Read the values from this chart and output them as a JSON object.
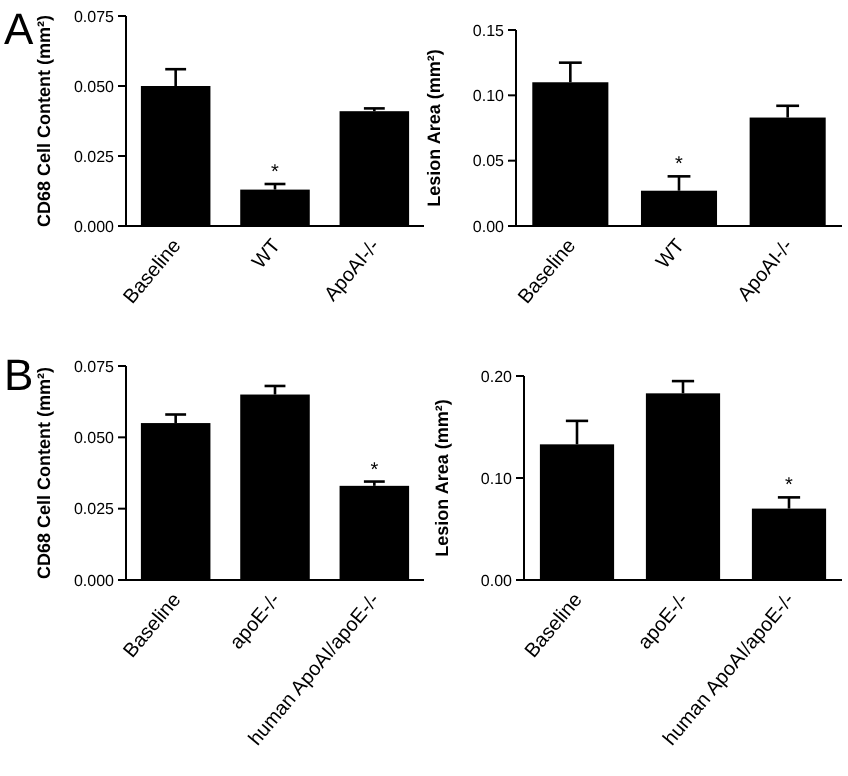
{
  "chart_data": [
    {
      "type": "bar",
      "ylabel": "CD68 Cell Content (mm²)",
      "categories": [
        "Baseline",
        "WT",
        "ApoAI-/-"
      ],
      "values": [
        0.05,
        0.013,
        0.041
      ],
      "color": "#000000",
      "errors": [
        [
          0.05,
          0.056
        ],
        [
          0.013,
          0.015
        ],
        [
          0.041,
          0.042
        ]
      ],
      "ylim": [
        0,
        0.075
      ],
      "yticks": [
        {
          "value": 0,
          "label": "0.000"
        },
        {
          "value": 0.025,
          "label": "0.025"
        },
        {
          "value": 0.05,
          "label": "0.050"
        },
        {
          "value": 0.075,
          "label": "0.075"
        }
      ],
      "grid": false,
      "annotations": [
        "A",
        {
          "text": "*",
          "x": "WT",
          "y": 0.015
        }
      ]
    },
    {
      "type": "bar",
      "ylabel": "Lesion Area (mm²)",
      "categories": [
        "Baseline",
        "WT",
        "ApoAI-/-"
      ],
      "values": [
        0.11,
        0.027,
        0.083
      ],
      "color": "#000000",
      "errors": [
        [
          0.11,
          0.125
        ],
        [
          0.027,
          0.038
        ],
        [
          0.083,
          0.092
        ]
      ],
      "ylim": [
        0,
        0.15
      ],
      "yticks": [
        {
          "value": 0,
          "label": "0.00"
        },
        {
          "value": 0.05,
          "label": "0.05"
        },
        {
          "value": 0.1,
          "label": "0.10"
        },
        {
          "value": 0.15,
          "label": "0.15"
        }
      ],
      "grid": false,
      "annotations": [
        {
          "text": "*",
          "x": "WT",
          "y": 0.038
        }
      ]
    },
    {
      "type": "bar",
      "ylabel": "CD68 Cell Content (mm²)",
      "categories": [
        "Baseline",
        "apoE-/-",
        "human ApoAI/apoE-/-"
      ],
      "values": [
        0.055,
        0.065,
        0.033
      ],
      "color": "#000000",
      "errors": [
        [
          0.055,
          0.058
        ],
        [
          0.065,
          0.068
        ],
        [
          0.033,
          0.0345
        ]
      ],
      "ylim": [
        0,
        0.075
      ],
      "yticks": [
        {
          "value": 0,
          "label": "0.000"
        },
        {
          "value": 0.025,
          "label": "0.025"
        },
        {
          "value": 0.05,
          "label": "0.050"
        },
        {
          "value": 0.075,
          "label": "0.075"
        }
      ],
      "grid": false,
      "annotations": [
        "B",
        {
          "text": "*",
          "x": "human ApoAI/apoE-/-",
          "y": 0.0345
        }
      ]
    },
    {
      "type": "bar",
      "ylabel": "Lesion Area (mm²)",
      "categories": [
        "Baseline",
        "apoE-/-",
        "human ApoAI/apoE-/-"
      ],
      "values": [
        0.133,
        0.183,
        0.07
      ],
      "color": "#000000",
      "errors": [
        [
          0.133,
          0.156
        ],
        [
          0.183,
          0.195
        ],
        [
          0.07,
          0.081
        ]
      ],
      "ylim": [
        0,
        0.2
      ],
      "yticks": [
        {
          "value": 0,
          "label": "0.00"
        },
        {
          "value": 0.1,
          "label": "0.10"
        },
        {
          "value": 0.2,
          "label": "0.20"
        }
      ],
      "grid": false,
      "annotations": [
        {
          "text": "*",
          "x": "human ApoAI/apoE-/-",
          "y": 0.081
        }
      ]
    }
  ]
}
